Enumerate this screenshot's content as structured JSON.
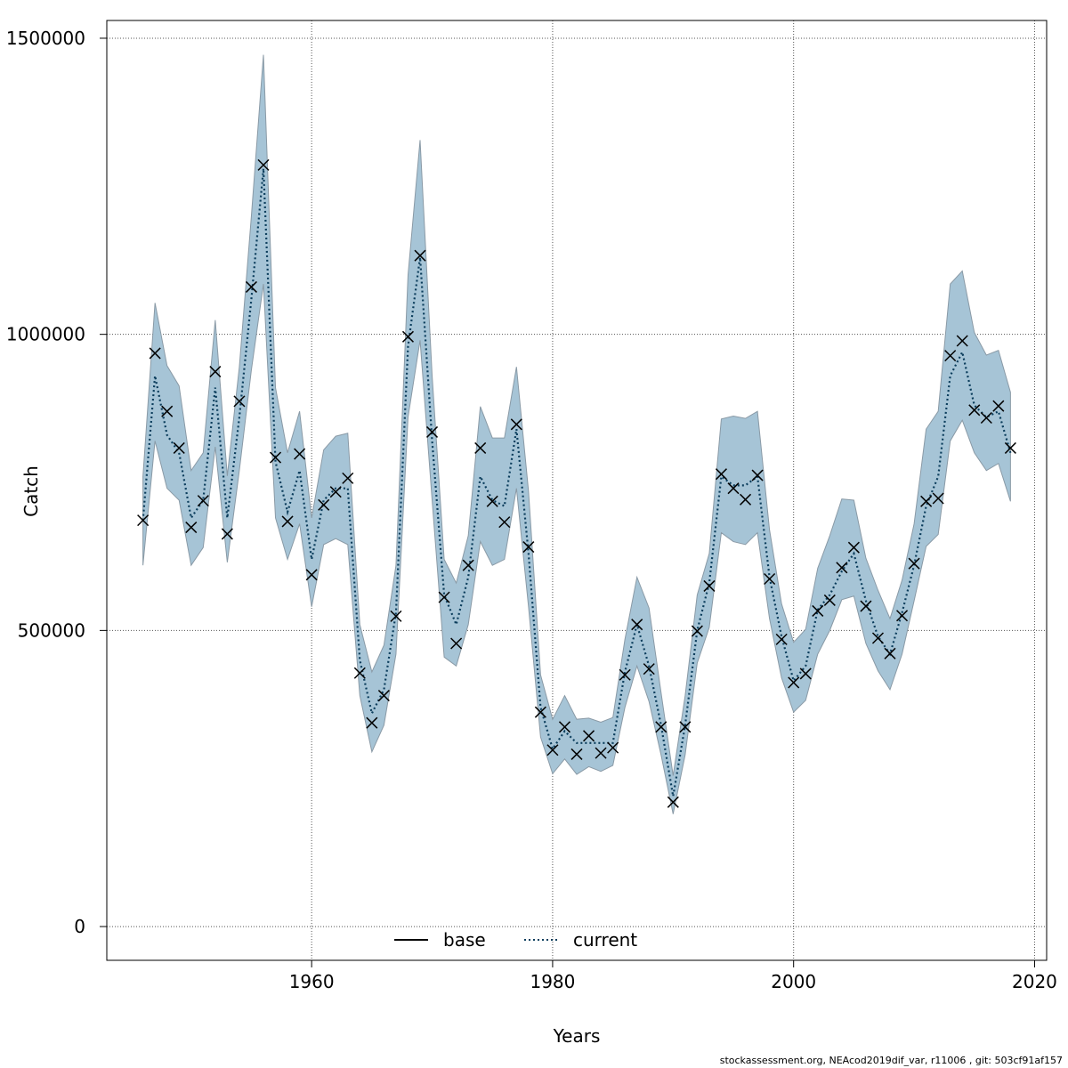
{
  "chart_data": {
    "type": "line",
    "xlabel": "Years",
    "ylabel": "Catch",
    "xlim": [
      1943,
      2021
    ],
    "ylim": [
      -57000,
      1530000
    ],
    "x_ticks": [
      1960,
      1980,
      2000,
      2020
    ],
    "y_ticks": [
      0,
      500000,
      1000000,
      1500000
    ],
    "x_tick_labels": [
      "1960",
      "1980",
      "2000",
      "2020"
    ],
    "y_tick_labels": [
      "0",
      "500000",
      "1000000",
      "1500000"
    ],
    "grid": true,
    "legend": {
      "position": "bottom",
      "items": [
        {
          "label": "base",
          "color": "#000000",
          "style": "solid"
        },
        {
          "label": "current",
          "color": "#0b3d5c",
          "style": "dotted"
        }
      ]
    },
    "colors": {
      "band": "#a6c4d6",
      "band_edge": "#8a9aa6",
      "current": "#0b3d5c",
      "observed": "#000000",
      "grid": "#555555"
    },
    "years": [
      1946,
      1947,
      1948,
      1949,
      1950,
      1951,
      1952,
      1953,
      1954,
      1955,
      1956,
      1957,
      1958,
      1959,
      1960,
      1961,
      1962,
      1963,
      1964,
      1965,
      1966,
      1967,
      1968,
      1969,
      1970,
      1971,
      1972,
      1973,
      1974,
      1975,
      1976,
      1977,
      1978,
      1979,
      1980,
      1981,
      1982,
      1983,
      1984,
      1985,
      1986,
      1987,
      1988,
      1989,
      1990,
      1991,
      1992,
      1993,
      1994,
      1995,
      1996,
      1997,
      1998,
      1999,
      2000,
      2001,
      2002,
      2003,
      2004,
      2005,
      2006,
      2007,
      2008,
      2009,
      2010,
      2011,
      2012,
      2013,
      2014,
      2015,
      2016,
      2017,
      2018
    ],
    "observed": [
      686000,
      968000,
      870000,
      808000,
      674000,
      719000,
      937000,
      663000,
      887000,
      1080000,
      1286000,
      792000,
      684000,
      798000,
      594000,
      712000,
      734000,
      757000,
      428000,
      344000,
      390000,
      524000,
      996000,
      1133000,
      835000,
      556000,
      478000,
      610000,
      808000,
      718000,
      683000,
      848000,
      641000,
      362000,
      298000,
      337000,
      291000,
      322000,
      293000,
      302000,
      425000,
      510000,
      435000,
      337000,
      210000,
      337000,
      499000,
      575000,
      764000,
      740000,
      721000,
      762000,
      587000,
      485000,
      412000,
      427000,
      533000,
      551000,
      606000,
      640000,
      541000,
      487000,
      461000,
      525000,
      613000,
      718000,
      723000,
      964000,
      989000,
      872000,
      859000,
      879000,
      808000
    ],
    "estimate": [
      686000,
      930000,
      830000,
      800000,
      690000,
      720000,
      910000,
      690000,
      860000,
      1060000,
      1280000,
      785000,
      700000,
      770000,
      620000,
      720000,
      740000,
      740000,
      450000,
      360000,
      400000,
      530000,
      980000,
      1130000,
      820000,
      560000,
      510000,
      590000,
      760000,
      720000,
      710000,
      840000,
      630000,
      370000,
      300000,
      330000,
      310000,
      310000,
      310000,
      310000,
      430000,
      510000,
      440000,
      340000,
      220000,
      340000,
      500000,
      580000,
      760000,
      745000,
      745000,
      760000,
      590000,
      490000,
      415000,
      440000,
      535000,
      560000,
      600000,
      630000,
      550000,
      490000,
      460000,
      530000,
      610000,
      710000,
      760000,
      930000,
      970000,
      880000,
      860000,
      870000,
      800000
    ],
    "lower": [
      610000,
      820000,
      740000,
      720000,
      610000,
      640000,
      810000,
      615000,
      770000,
      940000,
      1085000,
      690000,
      620000,
      680000,
      540000,
      645000,
      655000,
      645000,
      390000,
      295000,
      340000,
      460000,
      860000,
      990000,
      720000,
      455000,
      440000,
      510000,
      650000,
      610000,
      620000,
      740000,
      540000,
      320000,
      258000,
      283000,
      257000,
      270000,
      262000,
      272000,
      370000,
      440000,
      380000,
      290000,
      190000,
      290000,
      445000,
      505000,
      665000,
      650000,
      645000,
      665000,
      520000,
      420000,
      362000,
      382000,
      460000,
      500000,
      552000,
      558000,
      478000,
      432000,
      400000,
      460000,
      550000,
      642000,
      662000,
      820000,
      855000,
      800000,
      770000,
      782000,
      718000
    ],
    "upper": [
      760000,
      1053000,
      947000,
      913000,
      770000,
      800000,
      1024000,
      761000,
      945000,
      1200000,
      1472000,
      910000,
      800000,
      870000,
      690000,
      805000,
      828000,
      833000,
      510000,
      430000,
      475000,
      610000,
      1100000,
      1328000,
      930000,
      620000,
      580000,
      660000,
      878000,
      825000,
      825000,
      945000,
      735000,
      425000,
      350000,
      390000,
      350000,
      352000,
      345000,
      353000,
      485000,
      590000,
      538000,
      395000,
      255000,
      390000,
      560000,
      630000,
      857000,
      862000,
      858000,
      870000,
      670000,
      545000,
      480000,
      502000,
      605000,
      660000,
      722000,
      720000,
      622000,
      568000,
      520000,
      585000,
      680000,
      840000,
      870000,
      1085000,
      1107000,
      1003000,
      965000,
      973000,
      902000
    ]
  },
  "footer": {
    "text": "stockassessment.org, NEAcod2019dif_var, r11006 , git: 503cf91af157"
  }
}
